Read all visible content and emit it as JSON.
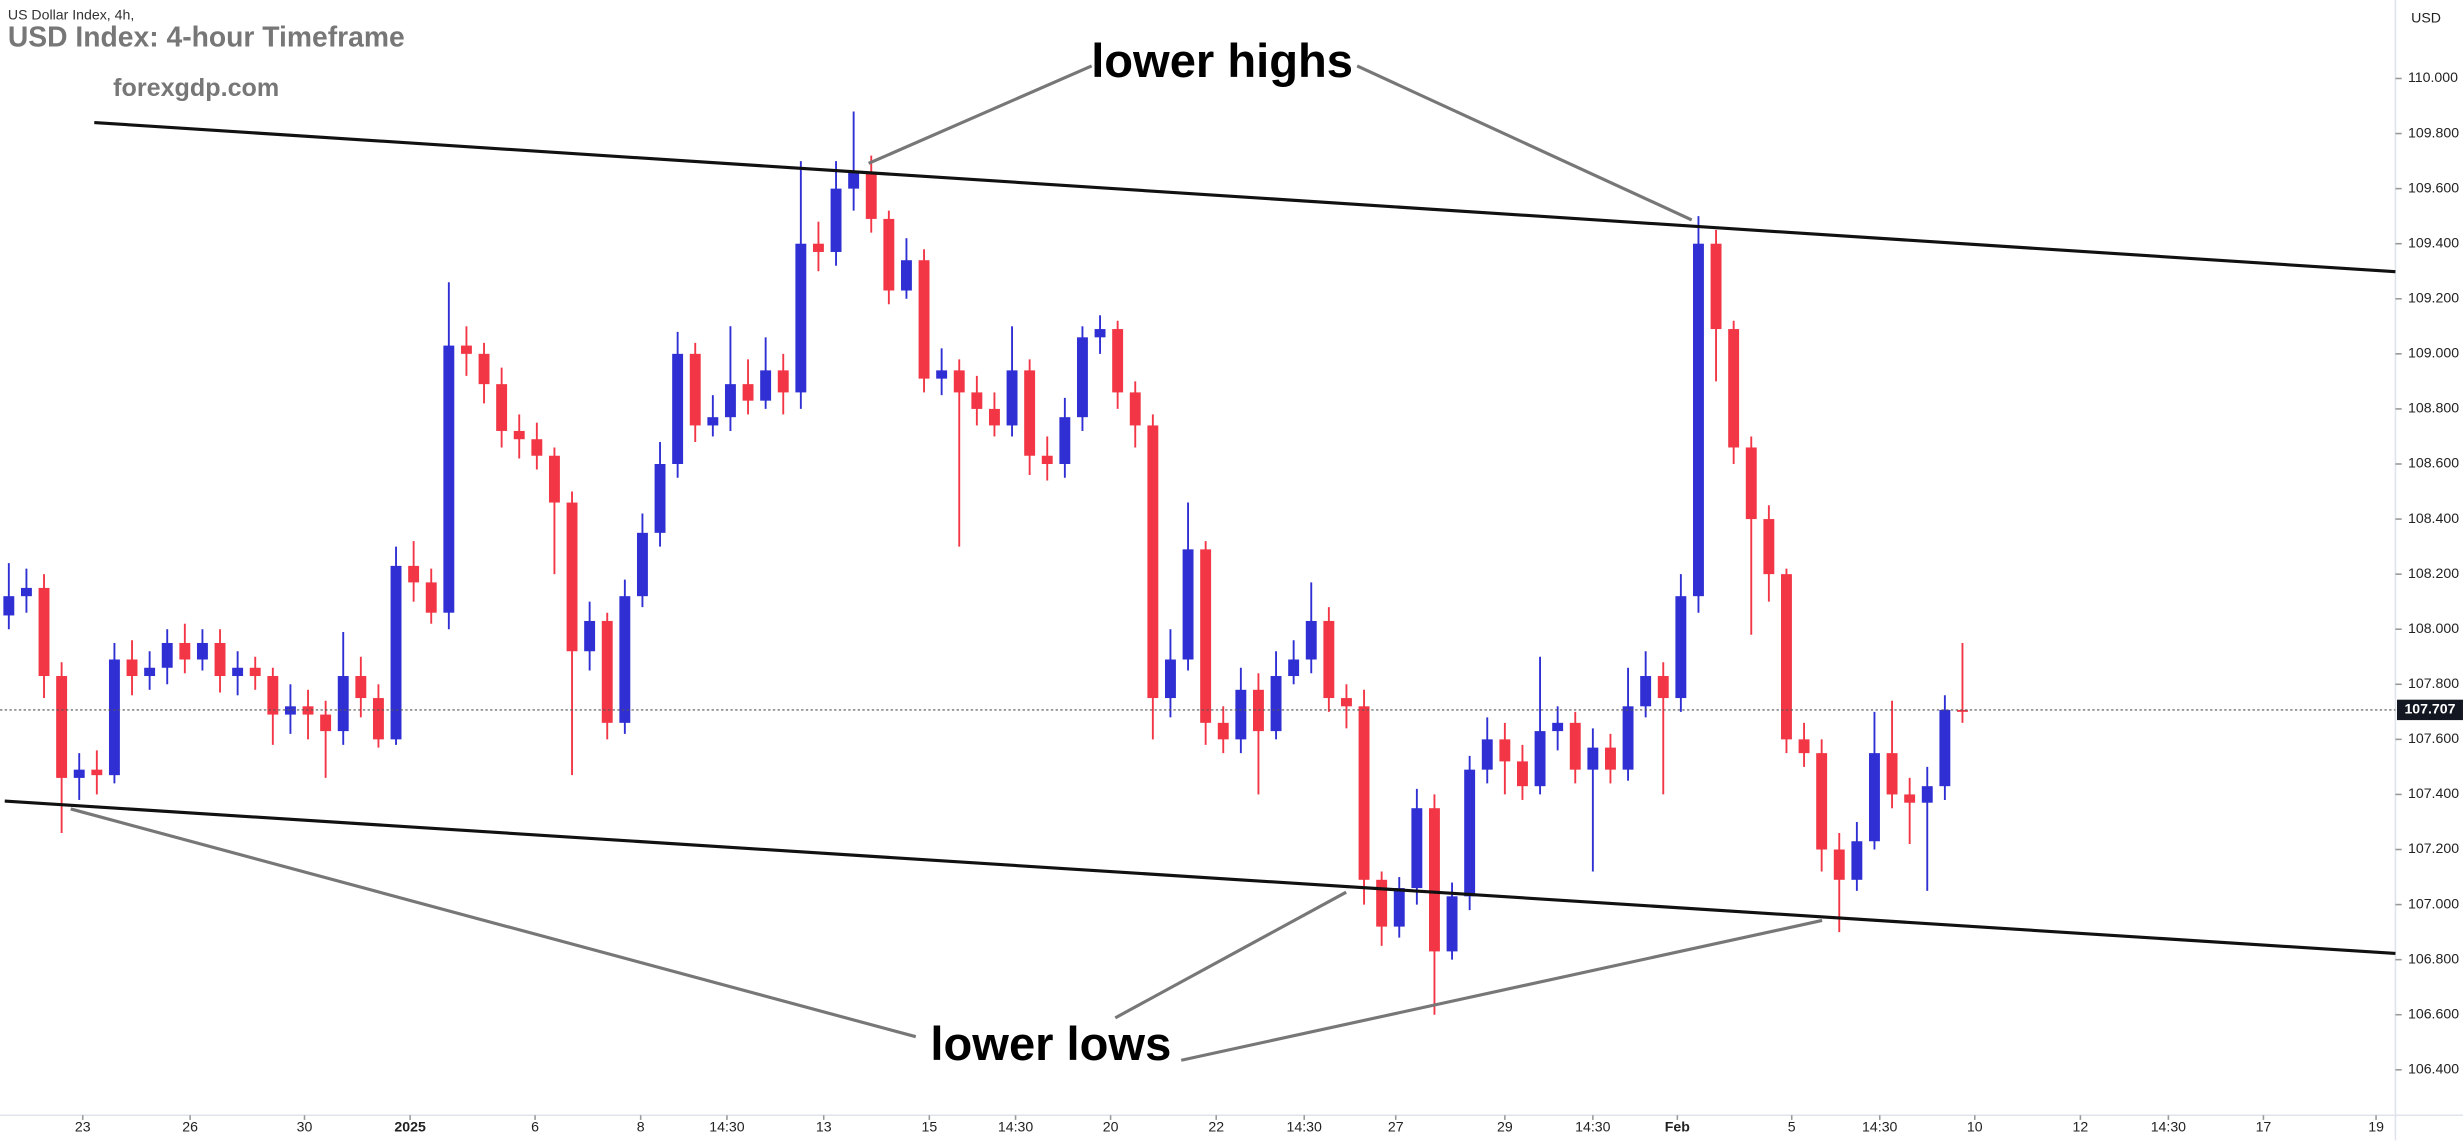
{
  "chart_data": {
    "type": "candlestick",
    "header": "US Dollar Index, 4h,",
    "title": "USD Index: 4-hour Timeframe",
    "watermark": "forexgdp.com",
    "y_axis_unit": "USD",
    "annotations": [
      "lower highs",
      "lower lows"
    ],
    "up_color": "#2f2fd3",
    "down_color": "#f23645",
    "last_price": 107.707,
    "open": [
      108.05,
      108.12,
      108.15,
      107.83,
      107.46,
      107.49,
      107.47,
      107.89,
      107.83,
      107.86,
      107.95,
      107.89,
      107.95,
      107.83,
      107.86,
      107.83,
      107.69,
      107.72,
      107.69,
      107.63,
      107.83,
      107.75,
      107.6,
      108.23,
      108.17,
      108.06,
      109.03,
      109.0,
      108.89,
      108.72,
      108.69,
      108.63,
      108.46,
      107.92,
      108.03,
      107.66,
      108.12,
      108.35,
      108.6,
      109.0,
      108.74,
      108.77,
      108.89,
      108.83,
      108.94,
      108.86,
      109.4,
      109.37,
      109.6,
      109.66,
      109.49,
      109.23,
      109.34,
      108.91,
      108.94,
      108.86,
      108.8,
      108.74,
      108.94,
      108.63,
      108.6,
      108.77,
      109.06,
      109.09,
      108.86,
      108.74,
      107.75,
      107.89,
      108.29,
      107.66,
      107.6,
      107.78,
      107.63,
      107.83,
      107.89,
      108.03,
      107.75,
      107.72,
      107.09,
      106.92,
      107.06,
      107.35,
      106.83,
      107.03,
      107.49,
      107.6,
      107.52,
      107.43,
      107.63,
      107.66,
      107.49,
      107.57,
      107.49,
      107.72,
      107.83,
      107.75,
      108.12,
      109.4,
      109.09,
      108.66,
      108.4,
      108.2,
      107.6,
      107.55,
      107.2,
      107.09,
      107.23,
      107.55,
      107.4,
      107.37,
      107.43,
      107.707
    ],
    "high": [
      108.24,
      108.22,
      108.2,
      107.88,
      107.55,
      107.56,
      107.95,
      107.96,
      107.92,
      108.0,
      108.02,
      108.0,
      108.0,
      107.92,
      107.9,
      107.86,
      107.8,
      107.78,
      107.74,
      107.99,
      107.9,
      107.8,
      108.3,
      108.32,
      108.22,
      109.26,
      109.1,
      109.04,
      108.95,
      108.78,
      108.75,
      108.66,
      108.5,
      108.1,
      108.06,
      108.18,
      108.42,
      108.68,
      109.08,
      109.04,
      108.85,
      109.1,
      108.98,
      109.06,
      109.0,
      109.7,
      109.48,
      109.7,
      109.88,
      109.72,
      109.52,
      109.42,
      109.38,
      109.02,
      108.98,
      108.92,
      108.86,
      109.1,
      108.98,
      108.7,
      108.84,
      109.1,
      109.14,
      109.12,
      108.9,
      108.78,
      108.0,
      108.46,
      108.32,
      107.72,
      107.86,
      107.84,
      107.92,
      107.96,
      108.17,
      108.08,
      107.8,
      107.78,
      107.12,
      107.1,
      107.42,
      107.4,
      107.08,
      107.54,
      107.68,
      107.66,
      107.58,
      107.9,
      107.72,
      107.7,
      107.64,
      107.62,
      107.86,
      107.92,
      107.88,
      108.2,
      109.5,
      109.45,
      109.12,
      108.7,
      108.45,
      108.22,
      107.66,
      107.6,
      107.26,
      107.3,
      107.7,
      107.74,
      107.46,
      107.5,
      107.76,
      107.95
    ],
    "low": [
      108.0,
      108.06,
      107.75,
      107.26,
      107.38,
      107.4,
      107.44,
      107.76,
      107.78,
      107.8,
      107.84,
      107.85,
      107.77,
      107.76,
      107.78,
      107.58,
      107.62,
      107.6,
      107.46,
      107.58,
      107.68,
      107.57,
      107.58,
      108.1,
      108.02,
      108.0,
      108.92,
      108.82,
      108.66,
      108.62,
      108.58,
      108.2,
      107.47,
      107.85,
      107.6,
      107.62,
      108.08,
      108.3,
      108.55,
      108.68,
      108.7,
      108.72,
      108.78,
      108.8,
      108.78,
      108.8,
      109.3,
      109.32,
      109.52,
      109.44,
      109.18,
      109.2,
      108.86,
      108.85,
      108.3,
      108.74,
      108.7,
      108.7,
      108.56,
      108.54,
      108.55,
      108.72,
      109.0,
      108.8,
      108.66,
      107.6,
      107.68,
      107.85,
      107.58,
      107.55,
      107.55,
      107.4,
      107.6,
      107.8,
      107.84,
      107.7,
      107.64,
      107.0,
      106.85,
      106.88,
      107.0,
      106.6,
      106.8,
      106.98,
      107.44,
      107.4,
      107.38,
      107.4,
      107.56,
      107.44,
      107.12,
      107.44,
      107.45,
      107.68,
      107.4,
      107.7,
      108.06,
      108.9,
      108.6,
      107.98,
      108.1,
      107.55,
      107.5,
      107.12,
      106.9,
      107.05,
      107.2,
      107.35,
      107.22,
      107.05,
      107.38,
      107.66
    ],
    "close": [
      108.12,
      108.15,
      107.83,
      107.46,
      107.49,
      107.47,
      107.89,
      107.83,
      107.86,
      107.95,
      107.89,
      107.95,
      107.83,
      107.86,
      107.83,
      107.69,
      107.72,
      107.69,
      107.63,
      107.83,
      107.75,
      107.6,
      108.23,
      108.17,
      108.06,
      109.03,
      109.0,
      108.89,
      108.72,
      108.69,
      108.63,
      108.46,
      107.92,
      108.03,
      107.66,
      108.12,
      108.35,
      108.6,
      109.0,
      108.74,
      108.77,
      108.89,
      108.83,
      108.94,
      108.86,
      109.4,
      109.37,
      109.6,
      109.66,
      109.49,
      109.23,
      109.34,
      108.91,
      108.94,
      108.86,
      108.8,
      108.74,
      108.94,
      108.63,
      108.6,
      108.77,
      109.06,
      109.09,
      108.86,
      108.74,
      107.75,
      107.89,
      108.29,
      107.66,
      107.6,
      107.78,
      107.63,
      107.83,
      107.89,
      108.03,
      107.75,
      107.72,
      107.09,
      106.92,
      107.06,
      107.35,
      106.83,
      107.03,
      107.49,
      107.6,
      107.52,
      107.43,
      107.63,
      107.66,
      107.49,
      107.57,
      107.49,
      107.72,
      107.83,
      107.75,
      108.12,
      109.4,
      109.09,
      108.66,
      108.4,
      108.2,
      107.6,
      107.55,
      107.2,
      107.09,
      107.23,
      107.55,
      107.4,
      107.37,
      107.43,
      107.707,
      107.7
    ],
    "xlim": [
      -0.5,
      135.6
    ],
    "ylim": [
      106.235,
      110.285
    ],
    "xticks": [
      {
        "value": 4.2,
        "label": "23"
      },
      {
        "value": 10.3,
        "label": "26"
      },
      {
        "value": 16.8,
        "label": "30"
      },
      {
        "value": 22.8,
        "label": "2025"
      },
      {
        "value": 29.9,
        "label": "6"
      },
      {
        "value": 35.9,
        "label": "8"
      },
      {
        "value": 40.8,
        "label": "14:30"
      },
      {
        "value": 46.3,
        "label": "13"
      },
      {
        "value": 52.3,
        "label": "15"
      },
      {
        "value": 57.2,
        "label": "14:30"
      },
      {
        "value": 62.6,
        "label": "20"
      },
      {
        "value": 68.6,
        "label": "22"
      },
      {
        "value": 73.6,
        "label": "14:30"
      },
      {
        "value": 78.8,
        "label": "27"
      },
      {
        "value": 85.0,
        "label": "29"
      },
      {
        "value": 90.0,
        "label": "14:30"
      },
      {
        "value": 94.8,
        "label": "Feb"
      },
      {
        "value": 101.3,
        "label": "5"
      },
      {
        "value": 106.3,
        "label": "14:30"
      },
      {
        "value": 111.7,
        "label": "10"
      },
      {
        "value": 117.7,
        "label": "12"
      },
      {
        "value": 122.7,
        "label": "14:30"
      },
      {
        "value": 128.1,
        "label": "17"
      },
      {
        "value": 134.5,
        "label": "19"
      }
    ],
    "yticks": [
      {
        "value": 106.4,
        "label": "106.400"
      },
      {
        "value": 106.6,
        "label": "106.600"
      },
      {
        "value": 106.8,
        "label": "106.800"
      },
      {
        "value": 107.0,
        "label": "107.000"
      },
      {
        "value": 107.2,
        "label": "107.200"
      },
      {
        "value": 107.4,
        "label": "107.400"
      },
      {
        "value": 107.6,
        "label": "107.600"
      },
      {
        "value": 107.8,
        "label": "107.800"
      },
      {
        "value": 108.0,
        "label": "108.000"
      },
      {
        "value": 108.2,
        "label": "108.200"
      },
      {
        "value": 108.4,
        "label": "108.400"
      },
      {
        "value": 108.6,
        "label": "108.600"
      },
      {
        "value": 108.8,
        "label": "108.800"
      },
      {
        "value": 109.0,
        "label": "109.000"
      },
      {
        "value": 109.2,
        "label": "109.200"
      },
      {
        "value": 109.4,
        "label": "109.400"
      },
      {
        "value": 109.6,
        "label": "109.600"
      },
      {
        "value": 109.8,
        "label": "109.800"
      },
      {
        "value": 110.0,
        "label": "110.000"
      }
    ]
  }
}
